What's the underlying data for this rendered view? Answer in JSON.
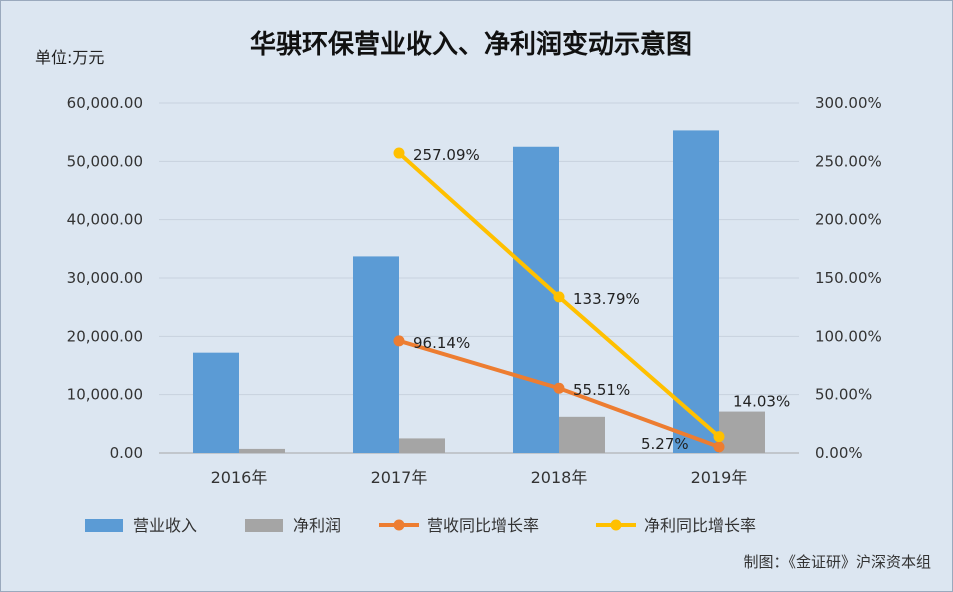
{
  "chart_data": {
    "type": "bar",
    "title": "华骐环保营业收入、净利润变动示意图",
    "unit_label": "单位:万元",
    "footer": "制图：《金证研》沪深资本组",
    "categories": [
      "2016年",
      "2017年",
      "2018年",
      "2019年"
    ],
    "y_left": {
      "range": [
        0,
        60000
      ],
      "ticks": [
        "0.00",
        "10,000.00",
        "20,000.00",
        "30,000.00",
        "40,000.00",
        "50,000.00",
        "60,000.00"
      ]
    },
    "y_right": {
      "range": [
        0,
        300
      ],
      "ticks": [
        "0.00%",
        "50.00%",
        "100.00%",
        "150.00%",
        "200.00%",
        "250.00%",
        "300.00%"
      ]
    },
    "grid": true,
    "legend_position": "bottom",
    "series": [
      {
        "name": "营业收入",
        "kind": "bar",
        "axis": "left",
        "color": "#5b9bd5",
        "values": [
          17200,
          33700,
          52500,
          55300
        ]
      },
      {
        "name": "净利润",
        "kind": "bar",
        "axis": "left",
        "color": "#a5a5a5",
        "values": [
          700,
          2500,
          6200,
          7100
        ]
      },
      {
        "name": "营收同比增长率",
        "kind": "line",
        "axis": "right",
        "color": "#ed7d31",
        "values": [
          null,
          96.14,
          55.51,
          5.27
        ],
        "labels": [
          "",
          "96.14%",
          "55.51%",
          "5.27%"
        ]
      },
      {
        "name": "净利同比增长率",
        "kind": "line",
        "axis": "right",
        "color": "#ffc000",
        "values": [
          null,
          257.09,
          133.79,
          14.03
        ],
        "labels": [
          "",
          "257.09%",
          "133.79%",
          "14.03%"
        ]
      }
    ]
  }
}
